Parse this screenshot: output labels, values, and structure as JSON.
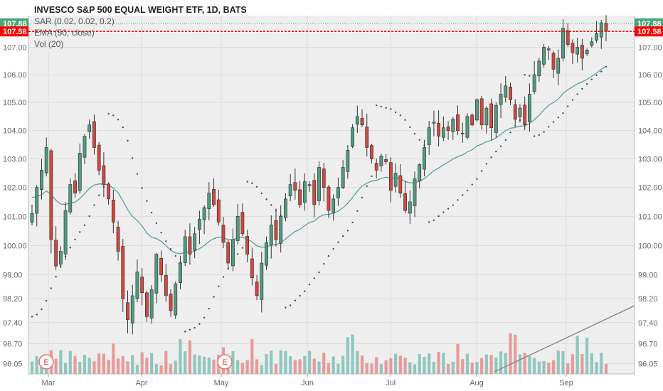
{
  "header": {
    "title": "INVESCO S&P 500 EQUAL WEIGHT ETF, 1D, BATS",
    "indicators": [
      "SAR (0.02, 0.02, 0.2)",
      "EMA (50, close)",
      "Vol (20)"
    ]
  },
  "colors": {
    "up": "#26a69a",
    "down": "#ef5350",
    "up_body": "#4e9c7e",
    "down_body": "#d3463e",
    "ema": "#5f9ea0",
    "sar": "#2a5a5a",
    "vol_up": "#8fc6be",
    "vol_down": "#e89a99",
    "plot_bg": "#eeeeee",
    "grid": "#dcdcdc",
    "last_tag": "#4ba47a",
    "close_tag": "#ff0000"
  },
  "price_tags": {
    "last": "107.88",
    "close": "107.58"
  },
  "earnings_markers": [
    {
      "label": "E",
      "month": "Mar",
      "offset_days": -3
    },
    {
      "label": "E",
      "month": "May",
      "offset_days": 3
    }
  ],
  "chart_data": {
    "type": "candlestick",
    "title": "INVESCO S&P 500 EQUAL WEIGHT ETF, 1D, BATS",
    "xlabel": "",
    "ylabel": "",
    "x_ticks": [
      "Mar",
      "Apr",
      "May",
      "Jun",
      "Jul",
      "Aug",
      "Sep"
    ],
    "y_ticks": [
      "96.05",
      "96.70",
      "97.40",
      "98.20",
      "99.00",
      "100.00",
      "101.00",
      "102.00",
      "103.00",
      "104.00",
      "105.00",
      "106.00",
      "107.00"
    ],
    "y_scale": "log",
    "ylim": [
      95.8,
      108.5
    ],
    "grid": true,
    "legend": "top-left",
    "close": [
      101.1,
      102.0,
      102.6,
      103.4,
      100.2,
      99.3,
      99.8,
      101.2,
      102.1,
      101.8,
      103.2,
      103.8,
      104.2,
      103.4,
      102.6,
      102.1,
      101.6,
      100.8,
      99.8,
      98.2,
      97.5,
      98.3,
      99.1,
      98.4,
      97.6,
      98.5,
      99.7,
      99.0,
      98.3,
      97.8,
      98.7,
      99.4,
      100.3,
      99.7,
      100.4,
      100.9,
      101.3,
      101.8,
      101.4,
      100.8,
      100.1,
      99.4,
      100.2,
      101.0,
      100.4,
      99.7,
      98.9,
      98.3,
      99.4,
      100.1,
      100.7,
      100.2,
      101.0,
      101.6,
      102.1,
      101.9,
      101.4,
      102.2,
      102.1,
      101.4,
      102.7,
      102.0,
      101.2,
      101.6,
      102.0,
      102.7,
      103.3,
      104.1,
      104.5,
      104.2,
      103.4,
      103.0,
      102.6,
      103.1,
      102.9,
      101.9,
      102.5,
      101.8,
      101.2,
      101.5,
      102.3,
      102.8,
      103.4,
      104.1,
      104.3,
      103.8,
      104.1,
      104.0,
      104.4,
      104.0,
      103.9,
      104.5,
      104.2,
      105.1,
      104.2,
      104.8,
      104.1,
      104.9,
      105.3,
      105.6,
      105.1,
      104.4,
      104.8,
      104.2,
      105.3,
      106.0,
      106.5,
      107.0,
      106.9,
      106.2,
      106.6,
      107.7,
      107.1,
      106.8,
      107.0,
      106.6,
      106.9,
      107.2,
      107.5,
      107.9,
      107.58
    ],
    "ema_end": 105.7
  }
}
